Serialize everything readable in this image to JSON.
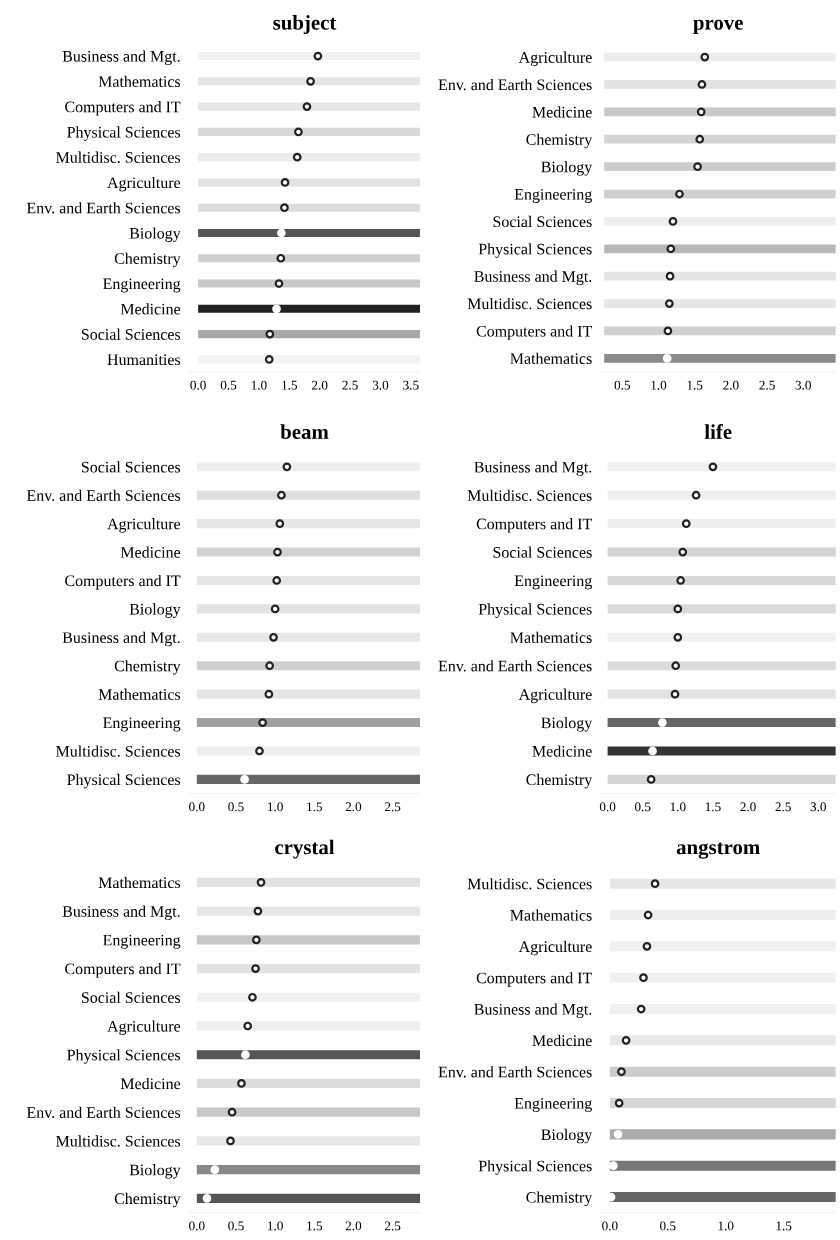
{
  "chart_data": [
    {
      "type": "bar",
      "orientation": "horizontal",
      "title": "subject",
      "marker": "circle",
      "categories": [
        "Business and Mgt.",
        "Mathematics",
        "Computers and IT",
        "Physical Sciences",
        "Multidisc. Sciences",
        "Agriculture",
        "Env. and Earth Sciences",
        "Biology",
        "Chemistry",
        "Engineering",
        "Medicine",
        "Social Sciences",
        "Humanities"
      ],
      "xlim": [
        -0.15,
        3.65
      ],
      "xticks": [
        {
          "value": 0,
          "label": "0.0"
        },
        0.5,
        {
          "value": 1,
          "label": "1.0"
        },
        1.5,
        {
          "value": 2,
          "label": "2.0"
        },
        2.5,
        {
          "value": 3,
          "label": "3.0"
        },
        3.5
      ],
      "series": [
        {
          "type": "bar",
          "base": [
            0,
            0,
            0,
            0,
            0,
            0,
            0,
            0,
            0,
            0,
            0,
            0,
            0
          ],
          "values": [
            3.65,
            3.65,
            3.65,
            3.65,
            3.65,
            3.65,
            3.65,
            3.65,
            3.65,
            3.65,
            3.65,
            3.65,
            3.65
          ],
          "colors": [
            "#f0f0f0",
            "#e6e6e6",
            "#e6e6e6",
            "#d8d8d8",
            "#ececec",
            "#e2e2e2",
            "#dcdcdc",
            "#555555",
            "#d0d0d0",
            "#c8c8c8",
            "#222222",
            "#a8a8a8",
            "#f2f2f2"
          ]
        },
        {
          "type": "scatter",
          "values": [
            1.97,
            1.85,
            1.79,
            1.65,
            1.63,
            1.43,
            1.42,
            1.37,
            1.36,
            1.33,
            1.29,
            1.18,
            1.17
          ],
          "colors": [
            "#222222",
            "#222222",
            "#222222",
            "#222222",
            "#222222",
            "#222222",
            "#222222",
            "#ffffff",
            "#222222",
            "#222222",
            "#ffffff",
            "#222222",
            "#222222"
          ]
        }
      ]
    },
    {
      "type": "bar",
      "orientation": "horizontal",
      "title": "prove",
      "marker": "circle",
      "categories": [
        "Agriculture",
        "Env. and Earth Sciences",
        "Medicine",
        "Chemistry",
        "Biology",
        "Engineering",
        "Social Sciences",
        "Physical Sciences",
        "Business and Mgt.",
        "Multidisc. Sciences",
        "Computers and IT",
        "Mathematics"
      ],
      "xlim": [
        0.2,
        3.45
      ],
      "xticks": [
        0.5,
        {
          "value": 1,
          "label": "1.0"
        },
        1.5,
        {
          "value": 2,
          "label": "2.0"
        },
        2.5,
        {
          "value": 3,
          "label": "3.0"
        }
      ],
      "series": [
        {
          "type": "bar",
          "base": [
            0.25,
            0.25,
            0.25,
            0.25,
            0.25,
            0.25,
            0.25,
            0.25,
            0.25,
            0.25,
            0.25,
            0.25
          ],
          "values": [
            3.2,
            3.2,
            3.2,
            3.2,
            3.2,
            3.2,
            3.2,
            3.2,
            3.2,
            3.2,
            3.2,
            3.2
          ],
          "colors": [
            "#ececec",
            "#e2e2e2",
            "#c8c8c8",
            "#d4d4d4",
            "#cccccc",
            "#cfcfcf",
            "#eeeeee",
            "#b8b8b8",
            "#e4e4e4",
            "#e6e6e6",
            "#d0d0d0",
            "#8a8a8a"
          ]
        },
        {
          "type": "scatter",
          "values": [
            1.64,
            1.6,
            1.59,
            1.57,
            1.54,
            1.29,
            1.2,
            1.17,
            1.16,
            1.15,
            1.13,
            1.12
          ],
          "colors": [
            "#222222",
            "#222222",
            "#222222",
            "#222222",
            "#222222",
            "#222222",
            "#222222",
            "#222222",
            "#222222",
            "#222222",
            "#222222",
            "#ffffff"
          ]
        }
      ]
    },
    {
      "type": "bar",
      "orientation": "horizontal",
      "title": "beam",
      "marker": "circle",
      "categories": [
        "Social Sciences",
        "Env. and Earth Sciences",
        "Agriculture",
        "Medicine",
        "Computers and IT",
        "Biology",
        "Business and Mgt.",
        "Chemistry",
        "Mathematics",
        "Engineering",
        "Multidisc. Sciences",
        "Physical Sciences"
      ],
      "xlim": [
        -0.1,
        2.85
      ],
      "xticks": [
        {
          "value": 0,
          "label": "0.0"
        },
        0.5,
        {
          "value": 1,
          "label": "1.0"
        },
        1.5,
        {
          "value": 2,
          "label": "2.0"
        },
        2.5
      ],
      "series": [
        {
          "type": "bar",
          "base": [
            0,
            0,
            0,
            0,
            0,
            0,
            0,
            0,
            0,
            0,
            0,
            0
          ],
          "values": [
            2.85,
            2.85,
            2.85,
            2.85,
            2.85,
            2.85,
            2.85,
            2.85,
            2.85,
            2.85,
            2.85,
            2.85
          ],
          "colors": [
            "#eeeeee",
            "#dedede",
            "#e6e6e6",
            "#d2d2d2",
            "#e6e6e6",
            "#e2e2e2",
            "#e8e8e8",
            "#d0d0d0",
            "#e6e6e6",
            "#a0a0a0",
            "#eeeeee",
            "#666666"
          ]
        },
        {
          "type": "scatter",
          "values": [
            1.15,
            1.08,
            1.06,
            1.03,
            1.02,
            1.0,
            0.98,
            0.93,
            0.92,
            0.84,
            0.8,
            0.61
          ],
          "colors": [
            "#222222",
            "#222222",
            "#222222",
            "#222222",
            "#222222",
            "#222222",
            "#222222",
            "#222222",
            "#222222",
            "#222222",
            "#222222",
            "#ffffff"
          ]
        }
      ]
    },
    {
      "type": "bar",
      "orientation": "horizontal",
      "title": "life",
      "marker": "circle",
      "categories": [
        "Business and Mgt.",
        "Multidisc. Sciences",
        "Computers and IT",
        "Social Sciences",
        "Engineering",
        "Physical Sciences",
        "Mathematics",
        "Env. and Earth Sciences",
        "Agriculture",
        "Biology",
        "Medicine",
        "Chemistry"
      ],
      "xlim": [
        -0.1,
        3.25
      ],
      "xticks": [
        {
          "value": 0,
          "label": "0.0"
        },
        0.5,
        {
          "value": 1,
          "label": "1.0"
        },
        1.5,
        {
          "value": 2,
          "label": "2.0"
        },
        2.5,
        {
          "value": 3,
          "label": "3.0"
        }
      ],
      "series": [
        {
          "type": "bar",
          "base": [
            0,
            0,
            0,
            0,
            0,
            0,
            0,
            0,
            0,
            0,
            0,
            0
          ],
          "values": [
            3.25,
            3.25,
            3.25,
            3.25,
            3.25,
            3.25,
            3.25,
            3.25,
            3.25,
            3.25,
            3.25,
            3.25
          ],
          "colors": [
            "#f0f0f0",
            "#eeeeee",
            "#eeeeee",
            "#d4d4d4",
            "#d8d8d8",
            "#dadada",
            "#f0f0f0",
            "#dcdcdc",
            "#e2e2e2",
            "#666666",
            "#333333",
            "#d6d6d6"
          ]
        },
        {
          "type": "scatter",
          "values": [
            1.5,
            1.26,
            1.12,
            1.07,
            1.04,
            1.0,
            1.0,
            0.97,
            0.96,
            0.78,
            0.64,
            0.62
          ],
          "colors": [
            "#222222",
            "#222222",
            "#222222",
            "#222222",
            "#222222",
            "#222222",
            "#222222",
            "#222222",
            "#222222",
            "#ffffff",
            "#ffffff",
            "#222222"
          ]
        }
      ]
    },
    {
      "type": "bar",
      "orientation": "horizontal",
      "title": "crystal",
      "marker": "circle",
      "categories": [
        "Mathematics",
        "Business and Mgt.",
        "Engineering",
        "Computers and IT",
        "Social Sciences",
        "Agriculture",
        "Physical Sciences",
        "Medicine",
        "Env. and Earth Sciences",
        "Multidisc. Sciences",
        "Biology",
        "Chemistry"
      ],
      "xlim": [
        -0.1,
        2.85
      ],
      "xticks": [
        {
          "value": 0,
          "label": "0.0"
        },
        0.5,
        {
          "value": 1,
          "label": "1.0"
        },
        1.5,
        {
          "value": 2,
          "label": "2.0"
        },
        2.5
      ],
      "series": [
        {
          "type": "bar",
          "base": [
            0,
            0,
            0,
            0,
            0,
            0,
            0,
            0,
            0,
            0,
            0,
            0
          ],
          "values": [
            2.85,
            2.85,
            2.85,
            2.85,
            2.85,
            2.85,
            2.85,
            2.85,
            2.85,
            2.85,
            2.85,
            2.85
          ],
          "colors": [
            "#e2e2e2",
            "#e6e6e6",
            "#c8c8c8",
            "#e2e2e2",
            "#f0f0f0",
            "#eeeeee",
            "#555555",
            "#dcdcdc",
            "#c8c8c8",
            "#e8e8e8",
            "#888888",
            "#555555"
          ]
        },
        {
          "type": "scatter",
          "values": [
            0.82,
            0.78,
            0.76,
            0.75,
            0.71,
            0.65,
            0.62,
            0.57,
            0.45,
            0.43,
            0.23,
            0.13
          ],
          "colors": [
            "#222222",
            "#222222",
            "#222222",
            "#222222",
            "#222222",
            "#222222",
            "#ffffff",
            "#222222",
            "#222222",
            "#222222",
            "#ffffff",
            "#ffffff"
          ]
        }
      ]
    },
    {
      "type": "bar",
      "orientation": "horizontal",
      "title": "angstrom",
      "marker": "circle",
      "categories": [
        "Multidisc. Sciences",
        "Mathematics",
        "Agriculture",
        "Computers and IT",
        "Business and Mgt.",
        "Medicine",
        "Env. and Earth Sciences",
        "Engineering",
        "Biology",
        "Physical Sciences",
        "Chemistry"
      ],
      "xlim": [
        -0.08,
        1.95
      ],
      "xticks": [
        {
          "value": 0,
          "label": "0.0"
        },
        0.5,
        {
          "value": 1,
          "label": "1.0"
        },
        1.5
      ],
      "series": [
        {
          "type": "bar",
          "base": [
            0,
            0,
            0,
            0,
            0,
            0,
            0,
            0,
            0,
            0,
            0
          ],
          "values": [
            1.95,
            1.95,
            1.95,
            1.95,
            1.95,
            1.95,
            1.95,
            1.95,
            1.95,
            1.95,
            1.95
          ],
          "colors": [
            "#e6e6e6",
            "#eeeeee",
            "#f0f0f0",
            "#f0f0f0",
            "#f0f0f0",
            "#e8e8e8",
            "#cccccc",
            "#d6d6d6",
            "#aaaaaa",
            "#777777",
            "#666666"
          ]
        },
        {
          "type": "scatter",
          "values": [
            0.39,
            0.33,
            0.32,
            0.29,
            0.27,
            0.14,
            0.1,
            0.08,
            0.07,
            0.03,
            0.01
          ],
          "colors": [
            "#222222",
            "#222222",
            "#222222",
            "#222222",
            "#222222",
            "#222222",
            "#222222",
            "#222222",
            "#ffffff",
            "#ffffff",
            "#ffffff"
          ]
        }
      ]
    }
  ]
}
